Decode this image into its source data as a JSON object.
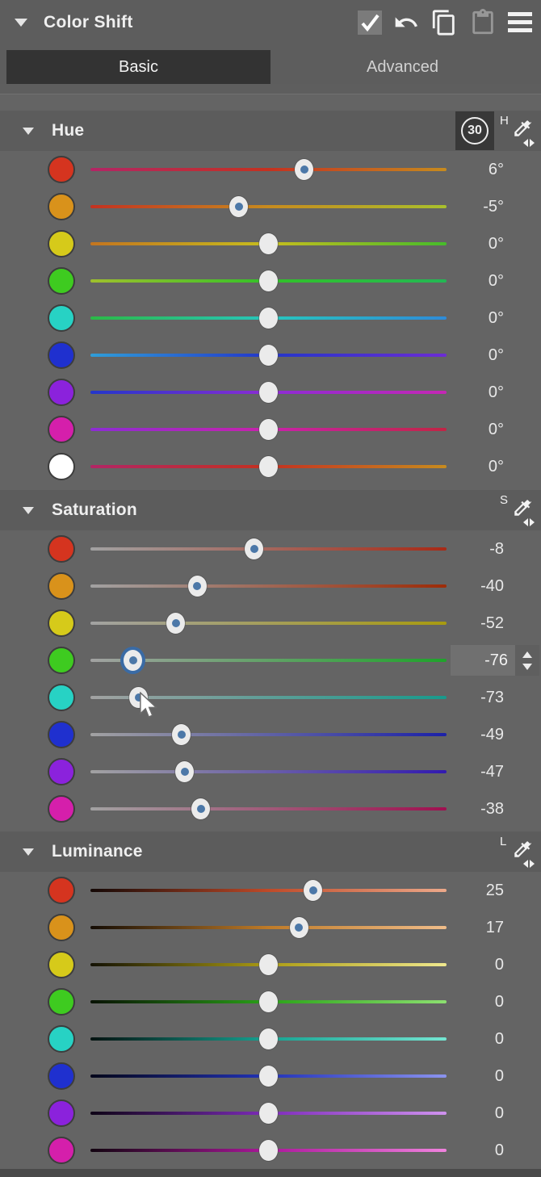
{
  "titlebar": {
    "title": "Color Shift",
    "icons": [
      {
        "name": "enabled-checkbox",
        "checked": true
      },
      {
        "name": "undo-icon",
        "enabled": true
      },
      {
        "name": "copy-icon",
        "enabled": true
      },
      {
        "name": "paste-icon",
        "enabled": false
      },
      {
        "name": "menu-icon",
        "enabled": true
      }
    ]
  },
  "tabs": [
    {
      "label": "Basic",
      "selected": true
    },
    {
      "label": "Advanced",
      "selected": false
    }
  ],
  "colors": {
    "panel_bg": "#646464",
    "header_bg": "#5c5c5c",
    "selected_tab_bg": "#333333",
    "handle_dot": "#4c78a8",
    "focus_ring": "#3a6ba5",
    "badge_bg": "#383838"
  },
  "sections": [
    {
      "id": "hue",
      "label": "Hue",
      "badge": "30",
      "picker_letter": "H",
      "range": 30,
      "rows": [
        {
          "name": "red",
          "swatch": "#d5341f",
          "value": 6,
          "display": "6°",
          "modified": true,
          "track": "linear-gradient(90deg,#b32565,#c43120 50%,#c78b1e)"
        },
        {
          "name": "orange",
          "swatch": "#d9921b",
          "value": -5,
          "display": "-5°",
          "modified": true,
          "track": "linear-gradient(90deg,#c43120,#c78b1e 50%,#a9c02c)"
        },
        {
          "name": "yellow",
          "swatch": "#d6ca1a",
          "value": 0,
          "display": "0°",
          "modified": false,
          "track": "linear-gradient(90deg,#c4751f,#c6bd1e 50%,#46bc2a)"
        },
        {
          "name": "green",
          "swatch": "#3ecb20",
          "value": 0,
          "display": "0°",
          "modified": false,
          "track": "linear-gradient(90deg,#9fc02c,#32c128 50%,#24b755)"
        },
        {
          "name": "cyan",
          "swatch": "#27d2c4",
          "value": 0,
          "display": "0°",
          "modified": false,
          "track": "linear-gradient(90deg,#2bb946,#27c6bd 50%,#2e8bd8)"
        },
        {
          "name": "blue",
          "swatch": "#1f30cf",
          "value": 0,
          "display": "0°",
          "modified": false,
          "track": "linear-gradient(90deg,#2f9ed8,#2336c9 50%,#6c2cd4)"
        },
        {
          "name": "purple",
          "swatch": "#8b22dc",
          "value": 0,
          "display": "0°",
          "modified": false,
          "track": "linear-gradient(90deg,#2336c9,#8c2cd4 50%,#c427b4)"
        },
        {
          "name": "magenta",
          "swatch": "#d51fab",
          "value": 0,
          "display": "0°",
          "modified": false,
          "track": "linear-gradient(90deg,#8c2cd4,#c922ab 50%,#c22445)"
        },
        {
          "name": "white",
          "swatch": "#ffffff",
          "value": 0,
          "display": "0°",
          "modified": false,
          "track": "linear-gradient(90deg,#b32565,#c43120 50%,#c78b1e)"
        }
      ]
    },
    {
      "id": "saturation",
      "label": "Saturation",
      "badge": null,
      "picker_letter": "S",
      "range": 100,
      "rows": [
        {
          "name": "red",
          "swatch": "#d5341f",
          "value": -8,
          "display": "-8",
          "modified": true,
          "track": "linear-gradient(90deg,#a2a2a2,#a82a16)"
        },
        {
          "name": "orange",
          "swatch": "#d9921b",
          "value": -40,
          "display": "-40",
          "modified": true,
          "track": "linear-gradient(90deg,#a2a2a2,#9e2c08)"
        },
        {
          "name": "yellow",
          "swatch": "#d6ca1a",
          "value": -52,
          "display": "-52",
          "modified": true,
          "track": "linear-gradient(90deg,#a2a2a2,#a89b10)"
        },
        {
          "name": "green",
          "swatch": "#3ecb20",
          "value": -76,
          "display": "-76",
          "modified": true,
          "focused": true,
          "editing": true,
          "track": "linear-gradient(90deg,#a2a2a2,#1fa32b)"
        },
        {
          "name": "cyan",
          "swatch": "#27d2c4",
          "value": -73,
          "display": "-73",
          "modified": true,
          "track": "linear-gradient(90deg,#a2a2a2,#189a8c)"
        },
        {
          "name": "blue",
          "swatch": "#1f30cf",
          "value": -49,
          "display": "-49",
          "modified": true,
          "track": "linear-gradient(90deg,#a2a2a2,#1c21a8)"
        },
        {
          "name": "purple",
          "swatch": "#8b22dc",
          "value": -47,
          "display": "-47",
          "modified": true,
          "track": "linear-gradient(90deg,#a2a2a2,#321ab0)"
        },
        {
          "name": "magenta",
          "swatch": "#d51fab",
          "value": -38,
          "display": "-38",
          "modified": true,
          "track": "linear-gradient(90deg,#a2a2a2,#a01050)"
        }
      ]
    },
    {
      "id": "luminance",
      "label": "Luminance",
      "badge": null,
      "picker_letter": "L",
      "range": 100,
      "rows": [
        {
          "name": "red",
          "swatch": "#d5341f",
          "value": 25,
          "display": "25",
          "modified": true,
          "track": "linear-gradient(90deg,#140806,#bf4a28 50%,#eda98a)"
        },
        {
          "name": "orange",
          "swatch": "#d9921b",
          "value": 17,
          "display": "17",
          "modified": true,
          "track": "linear-gradient(90deg,#140c04,#bf7b28 50%,#f0bd8a)"
        },
        {
          "name": "yellow",
          "swatch": "#d6ca1a",
          "value": 0,
          "display": "0",
          "modified": false,
          "track": "linear-gradient(90deg,#141204,#ac9c14 50%,#efe88e)"
        },
        {
          "name": "green",
          "swatch": "#3ecb20",
          "value": 0,
          "display": "0",
          "modified": false,
          "track": "linear-gradient(90deg,#081204,#2aa218 50%,#8ce070)"
        },
        {
          "name": "cyan",
          "swatch": "#27d2c4",
          "value": 0,
          "display": "0",
          "modified": false,
          "track": "linear-gradient(90deg,#041210,#16a392 50%,#74e6d2)"
        },
        {
          "name": "blue",
          "swatch": "#1f30cf",
          "value": 0,
          "display": "0",
          "modified": false,
          "track": "linear-gradient(90deg,#04061a,#2233b8 50%,#8b93ee)"
        },
        {
          "name": "purple",
          "swatch": "#8b22dc",
          "value": 0,
          "display": "0",
          "modified": false,
          "track": "linear-gradient(90deg,#0e0416,#7e2cba 50%,#cf92ee)"
        },
        {
          "name": "magenta",
          "swatch": "#d51fab",
          "value": 0,
          "display": "0",
          "modified": false,
          "track": "linear-gradient(90deg,#120410,#ad179c 50%,#f083de)"
        }
      ]
    }
  ],
  "cursor": {
    "visible": true
  }
}
